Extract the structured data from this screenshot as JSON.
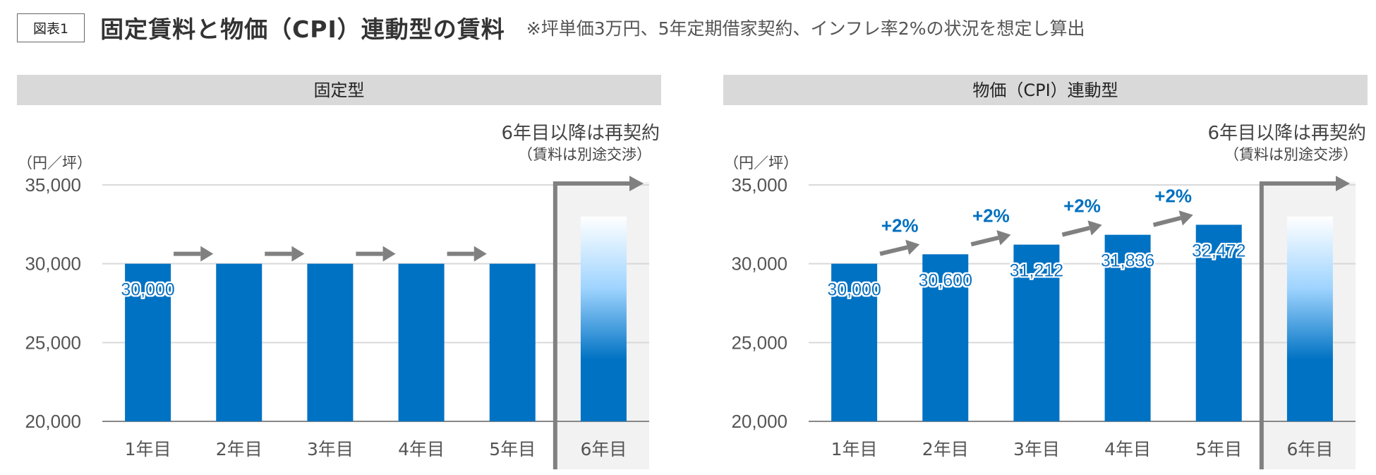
{
  "header": {
    "figure_label": "図表1",
    "title": "固定賃料と物価（CPI）連動型の賃料",
    "note": "※坪単価3万円、5年定期借家契約、インフレ率2%の状況を想定し算出"
  },
  "colors": {
    "bar": "#0072c3",
    "header_band": "#d9d9d9",
    "arrow": "#808080",
    "grid": "#d9d9d9",
    "future_band": "#f2f2f2",
    "pct_text": "#0070c0"
  },
  "chart_data": [
    {
      "type": "bar",
      "title": "固定型",
      "unit_label": "（円／坪）",
      "categories": [
        "1年目",
        "2年目",
        "3年目",
        "4年目",
        "5年目",
        "6年目"
      ],
      "values": [
        30000,
        30000,
        30000,
        30000,
        30000,
        null
      ],
      "data_labels": [
        "30,000",
        "",
        "",
        "",
        "",
        ""
      ],
      "yticks": [
        "20,000",
        "25,000",
        "30,000",
        "35,000"
      ],
      "ylim": [
        20000,
        35000
      ],
      "grid": true,
      "future_note": {
        "line1": "6年目以降は再契約",
        "line2": "（賃料は別途交渉）",
        "value": 33000
      },
      "growth_labels": []
    },
    {
      "type": "bar",
      "title": "物価（CPI）連動型",
      "unit_label": "（円／坪）",
      "categories": [
        "1年目",
        "2年目",
        "3年目",
        "4年目",
        "5年目",
        "6年目"
      ],
      "values": [
        30000,
        30600,
        31212,
        31836,
        32472,
        null
      ],
      "data_labels": [
        "30,000",
        "30,600",
        "31,212",
        "31,836",
        "32,472",
        ""
      ],
      "yticks": [
        "20,000",
        "25,000",
        "30,000",
        "35,000"
      ],
      "ylim": [
        20000,
        35000
      ],
      "grid": true,
      "future_note": {
        "line1": "6年目以降は再契約",
        "line2": "（賃料は別途交渉）",
        "value": 33000
      },
      "growth_labels": [
        "+2%",
        "+2%",
        "+2%",
        "+2%"
      ]
    }
  ]
}
